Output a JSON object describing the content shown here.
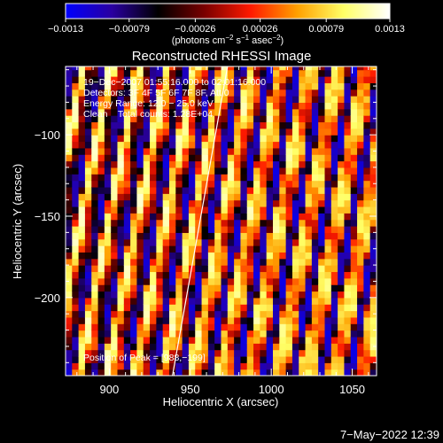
{
  "colorbar": {
    "tick_labels": [
      "−0.0013",
      "−0.00079",
      "−0.00026",
      "0.00026",
      "0.00079",
      "0.0013"
    ],
    "tick_values": [
      -0.0013,
      -0.00079,
      -0.00026,
      0.00026,
      0.00079,
      0.0013
    ],
    "range": [
      -0.0013,
      0.0013
    ],
    "unit_parts": [
      "(photons cm",
      "−2",
      " s",
      "−1",
      " asec",
      "−2",
      ")"
    ],
    "colors": [
      "#0000ff",
      "#2a00a0",
      "#000000",
      "#7a0000",
      "#ff1a00",
      "#ffa000",
      "#ffff66",
      "#ffffff"
    ]
  },
  "annotations": {
    "line1": "19−Dec−2007 01:55:16.000 to 02:01:16.000",
    "line2": "Detectors: 3F 4F 5F 6F 7F 8F, Att 0",
    "line3": "Energy Range: 12.0 − 25.0 keV",
    "line4": "Clean    Total counts: 1.28E+04",
    "peak": "Position of Peak = [988,−199]"
  },
  "footer_date": "7−May−2022 12:39",
  "colors": {
    "background": "#000000",
    "text": "#ffffff",
    "limb_line": "#ffffff"
  },
  "chart_data": {
    "type": "heatmap",
    "title": "Reconstructed RHESSI Image",
    "xlabel": "Heliocentric X (arcsec)",
    "ylabel": "Heliocentric Y (arcsec)",
    "xlim": [
      873,
      1065
    ],
    "ylim": [
      -248,
      -58
    ],
    "xticks": [
      900,
      950,
      1000,
      1050
    ],
    "xtick_labels": [
      "900",
      "950",
      "1000",
      "1050"
    ],
    "yticks": [
      -100,
      -150,
      -200
    ],
    "ytick_labels": [
      "−100",
      "−150",
      "−200"
    ],
    "value_range": [
      -0.0013,
      0.0013
    ],
    "peak_position": [
      988,
      -199
    ],
    "limb_line": {
      "x": [
        939,
        973
      ],
      "y": [
        -248,
        -58
      ]
    },
    "pattern": {
      "stripe_direction": "diagonal (steep, leaning right toward top)",
      "pixel_size_arcsec": 4
    }
  }
}
